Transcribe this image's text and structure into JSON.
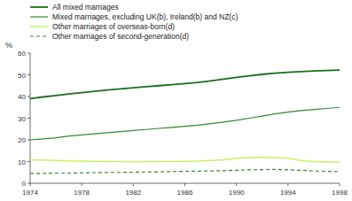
{
  "chart_data": {
    "type": "line",
    "y_label": "%",
    "x": [
      1974,
      1975,
      1976,
      1977,
      1978,
      1979,
      1980,
      1981,
      1982,
      1983,
      1984,
      1985,
      1986,
      1987,
      1988,
      1989,
      1990,
      1991,
      1992,
      1993,
      1994,
      1995,
      1996,
      1997,
      1998
    ],
    "xlim": [
      1974,
      1998
    ],
    "ylim": [
      0,
      60
    ],
    "xticks": [
      1974,
      1978,
      1982,
      1986,
      1990,
      1994,
      1998
    ],
    "yticks": [
      0,
      10,
      20,
      30,
      40,
      50,
      60
    ],
    "grid": false,
    "legend": "upper left",
    "series": [
      {
        "name": "All mixed marriages",
        "color": "#1a6e1a",
        "line_style": "solid",
        "values": [
          39.0,
          39.8,
          40.5,
          41.2,
          41.8,
          42.4,
          43.0,
          43.5,
          44.0,
          44.5,
          45.0,
          45.5,
          46.0,
          46.5,
          47.2,
          48.0,
          48.8,
          49.5,
          50.2,
          50.8,
          51.2,
          51.5,
          51.8,
          52.0,
          52.2
        ]
      },
      {
        "name": "Mixed marriages, excluding UK(b), Ireland(b) and NZ(c)",
        "color": "#2e8b2e",
        "line_style": "solid",
        "values": [
          20.0,
          20.5,
          21.0,
          21.8,
          22.3,
          22.8,
          23.3,
          23.8,
          24.3,
          24.8,
          25.3,
          25.8,
          26.3,
          26.8,
          27.5,
          28.2,
          29.0,
          30.0,
          31.0,
          32.0,
          32.8,
          33.5,
          34.0,
          34.5,
          35.0
        ]
      },
      {
        "name": "Other marriages of overseas-born(d)",
        "color": "#c8f060",
        "line_style": "solid",
        "values": [
          10.8,
          10.7,
          10.5,
          10.3,
          10.2,
          10.1,
          10.0,
          10.0,
          9.9,
          10.0,
          10.0,
          10.0,
          10.1,
          10.2,
          10.5,
          10.8,
          11.5,
          11.8,
          12.0,
          11.8,
          11.5,
          10.5,
          10.0,
          9.8,
          9.8
        ]
      },
      {
        "name": "Other marriages of second-generation(d)",
        "color": "#2e8b2e",
        "line_style": "dashed",
        "values": [
          4.5,
          4.6,
          4.7,
          4.7,
          4.8,
          4.9,
          5.0,
          5.0,
          5.1,
          5.2,
          5.3,
          5.4,
          5.5,
          5.6,
          5.7,
          5.8,
          6.0,
          6.2,
          6.3,
          6.4,
          6.2,
          6.0,
          5.7,
          5.5,
          5.4
        ]
      }
    ]
  }
}
